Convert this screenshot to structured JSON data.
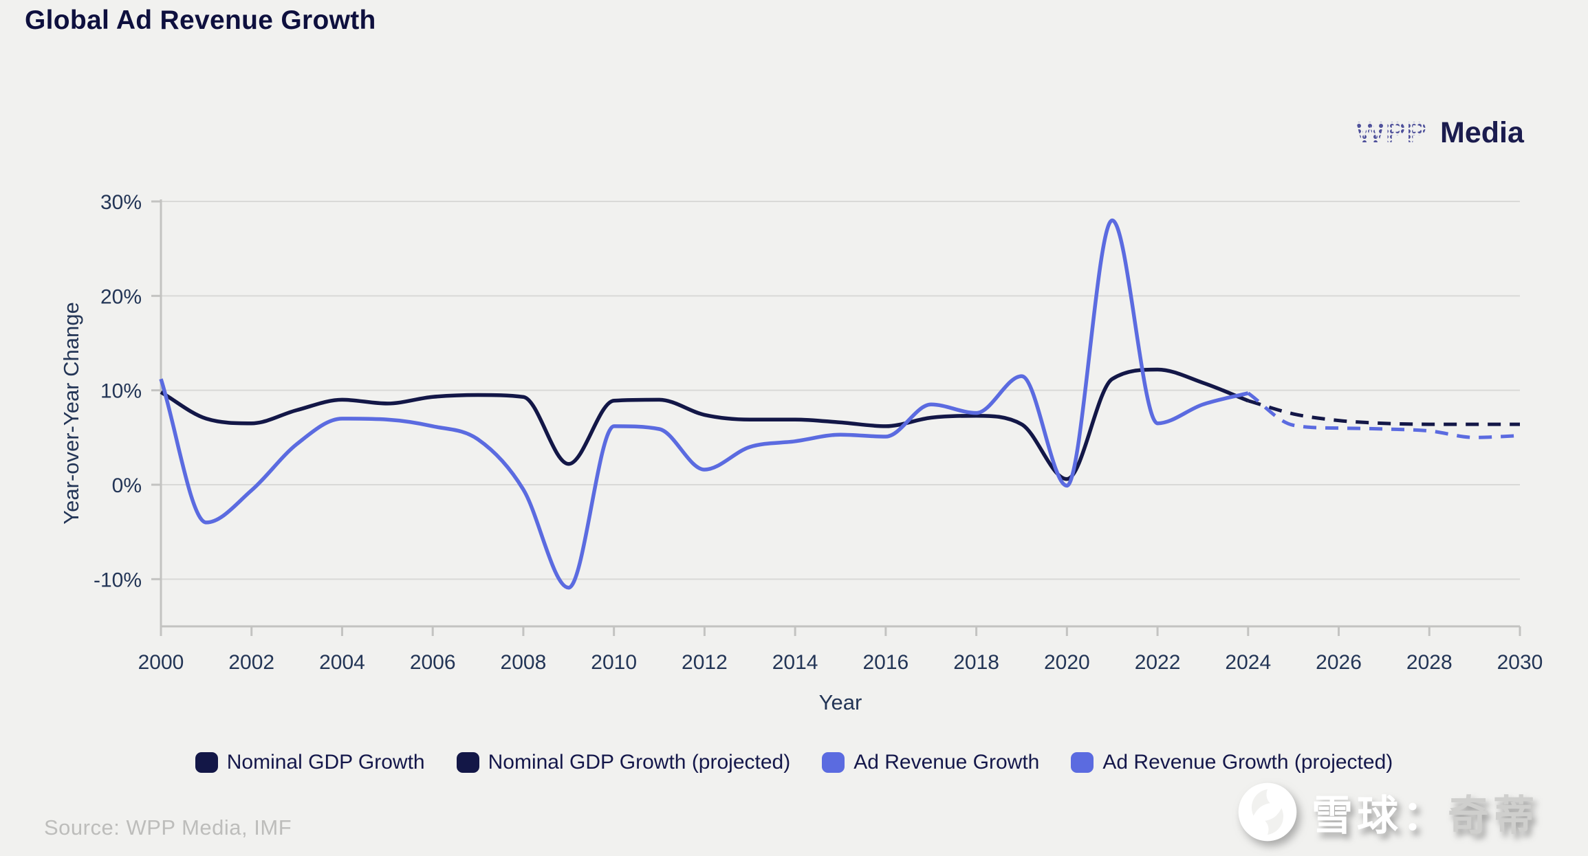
{
  "page": {
    "background": "#f1f1ef"
  },
  "header": {
    "title": "Global Ad Revenue Growth"
  },
  "logo": {
    "wpp": "WPP",
    "media": "Media",
    "wpp_color": "#4e509a",
    "media_color": "#1b1c4e"
  },
  "axes": {
    "x_title": "Year",
    "y_title": "Year-over-Year Change"
  },
  "chart_data": {
    "type": "line",
    "title": "Global Ad Revenue Growth",
    "xlabel": "Year",
    "ylabel": "Year-over-Year Change",
    "x_range": [
      2000,
      2030
    ],
    "y_range": [
      -15,
      30
    ],
    "grid": true,
    "legend_position": "bottom",
    "colors": {
      "gdp": "#131747",
      "ad": "#5b6be0",
      "gridline": "#d9d9d7",
      "axis": "#c3c3c1",
      "tick_text": "#233556"
    },
    "y_ticks": [
      {
        "value": 30,
        "label": "30%"
      },
      {
        "value": 20,
        "label": "20%"
      },
      {
        "value": 10,
        "label": "10%"
      },
      {
        "value": 0,
        "label": "0%"
      },
      {
        "value": -10,
        "label": "-10%"
      }
    ],
    "x_ticks": [
      {
        "value": 2000,
        "label": "2000"
      },
      {
        "value": 2002,
        "label": "2002"
      },
      {
        "value": 2004,
        "label": "2004"
      },
      {
        "value": 2006,
        "label": "2006"
      },
      {
        "value": 2008,
        "label": "2008"
      },
      {
        "value": 2010,
        "label": "2010"
      },
      {
        "value": 2012,
        "label": "2012"
      },
      {
        "value": 2014,
        "label": "2014"
      },
      {
        "value": 2016,
        "label": "2016"
      },
      {
        "value": 2018,
        "label": "2018"
      },
      {
        "value": 2020,
        "label": "2020"
      },
      {
        "value": 2022,
        "label": "2022"
      },
      {
        "value": 2024,
        "label": "2024"
      },
      {
        "value": 2026,
        "label": "2026"
      },
      {
        "value": 2028,
        "label": "2028"
      },
      {
        "value": 2030,
        "label": "2030"
      }
    ],
    "series": [
      {
        "name": "Nominal GDP Growth",
        "color": "#131747",
        "style": "solid",
        "years": [
          2000,
          2001,
          2002,
          2003,
          2004,
          2005,
          2006,
          2007,
          2008,
          2009,
          2010,
          2011,
          2012,
          2013,
          2014,
          2015,
          2016,
          2017,
          2018,
          2019,
          2020,
          2021,
          2022,
          2023,
          2024
        ],
        "values": [
          9.8,
          7.0,
          6.5,
          7.9,
          9.0,
          8.6,
          9.3,
          9.5,
          9.3,
          2.2,
          8.9,
          9.0,
          7.4,
          6.9,
          6.9,
          6.6,
          6.2,
          7.1,
          7.3,
          6.4,
          0.6,
          11.2,
          12.2,
          10.8,
          8.9
        ]
      },
      {
        "name": "Nominal GDP Growth (projected)",
        "color": "#131747",
        "style": "dashed",
        "years": [
          2024,
          2025,
          2026,
          2027,
          2028,
          2029,
          2030
        ],
        "values": [
          8.9,
          7.5,
          6.8,
          6.5,
          6.4,
          6.4,
          6.4
        ]
      },
      {
        "name": "Ad Revenue Growth",
        "color": "#5b6be0",
        "style": "solid",
        "years": [
          2000,
          2001,
          2002,
          2003,
          2004,
          2005,
          2006,
          2007,
          2008,
          2009,
          2010,
          2011,
          2012,
          2013,
          2014,
          2015,
          2016,
          2017,
          2018,
          2019,
          2020,
          2021,
          2022,
          2023,
          2024
        ],
        "values": [
          11.2,
          -4.0,
          -0.6,
          4.3,
          7.0,
          6.9,
          6.2,
          4.8,
          -0.5,
          -10.9,
          6.2,
          5.9,
          1.6,
          4.0,
          4.6,
          5.3,
          5.1,
          8.5,
          7.6,
          11.5,
          -0.1,
          28.0,
          6.5,
          8.5,
          9.7
        ]
      },
      {
        "name": "Ad Revenue Growth (projected)",
        "color": "#5b6be0",
        "style": "dashed",
        "years": [
          2024,
          2025,
          2026,
          2027,
          2028,
          2029,
          2030
        ],
        "values": [
          9.7,
          6.3,
          6.0,
          5.9,
          5.7,
          5.0,
          5.2
        ]
      }
    ]
  },
  "source": {
    "text": "Source: WPP Media, IMF"
  },
  "watermark": {
    "site": "雪球",
    "separator": "：",
    "user": "奇蒂"
  }
}
